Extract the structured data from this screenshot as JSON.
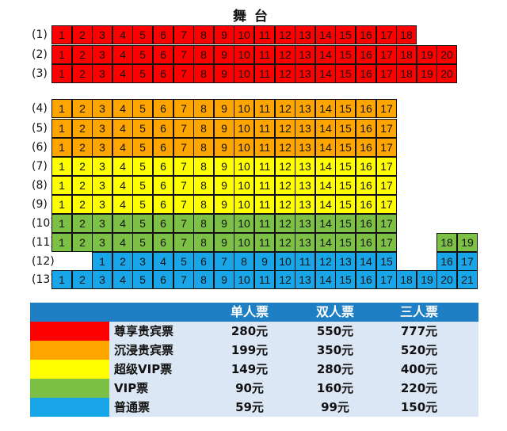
{
  "stage": {
    "title": "舞 台"
  },
  "colors": {
    "red": "#ff0000",
    "orange": "#ffa500",
    "yellow": "#ffff00",
    "green": "#7cc046",
    "blue": "#19a6e8",
    "header": "#1f7fc4",
    "legend_bg": "#dbe7f4"
  },
  "seating": {
    "rows": [
      {
        "label": "(1)",
        "tier": "red",
        "start_col": 1,
        "seats": [
          "1",
          "2",
          "3",
          "4",
          "5",
          "6",
          "7",
          "8",
          "9",
          "10",
          "11",
          "12",
          "13",
          "14",
          "15",
          "16",
          "17",
          "18"
        ]
      },
      {
        "label": "(2)",
        "tier": "red",
        "start_col": 1,
        "seats": [
          "1",
          "2",
          "3",
          "4",
          "5",
          "6",
          "7",
          "8",
          "9",
          "10",
          "11",
          "12",
          "13",
          "14",
          "15",
          "16",
          "17",
          "18",
          "19",
          "20"
        ]
      },
      {
        "label": "(3)",
        "tier": "red",
        "start_col": 1,
        "seats": [
          "1",
          "2",
          "3",
          "4",
          "5",
          "6",
          "7",
          "8",
          "9",
          "10",
          "11",
          "12",
          "13",
          "14",
          "15",
          "16",
          "17",
          "18",
          "19",
          "20"
        ]
      },
      {
        "label": "(4)",
        "tier": "orange",
        "start_col": 1,
        "seats": [
          "1",
          "2",
          "3",
          "4",
          "5",
          "6",
          "7",
          "8",
          "9",
          "10",
          "11",
          "12",
          "13",
          "14",
          "15",
          "16",
          "17"
        ]
      },
      {
        "label": "(5)",
        "tier": "orange",
        "start_col": 1,
        "seats": [
          "1",
          "2",
          "3",
          "4",
          "5",
          "6",
          "7",
          "8",
          "9",
          "10",
          "11",
          "12",
          "13",
          "14",
          "15",
          "16",
          "17"
        ]
      },
      {
        "label": "(6)",
        "tier": "orange",
        "start_col": 1,
        "seats": [
          "1",
          "2",
          "3",
          "4",
          "5",
          "6",
          "7",
          "8",
          "9",
          "10",
          "11",
          "12",
          "13",
          "14",
          "15",
          "16",
          "17"
        ]
      },
      {
        "label": "(7)",
        "tier": "yellow",
        "start_col": 1,
        "seats": [
          "1",
          "2",
          "3",
          "4",
          "5",
          "6",
          "7",
          "8",
          "9",
          "10",
          "11",
          "12",
          "13",
          "14",
          "15",
          "16",
          "17"
        ]
      },
      {
        "label": "(8)",
        "tier": "yellow",
        "start_col": 1,
        "seats": [
          "1",
          "2",
          "3",
          "4",
          "5",
          "6",
          "7",
          "8",
          "9",
          "10",
          "11",
          "12",
          "13",
          "14",
          "15",
          "16",
          "17"
        ]
      },
      {
        "label": "(9)",
        "tier": "yellow",
        "start_col": 1,
        "seats": [
          "1",
          "2",
          "3",
          "4",
          "5",
          "6",
          "7",
          "8",
          "9",
          "10",
          "11",
          "12",
          "13",
          "14",
          "15",
          "16",
          "17"
        ]
      },
      {
        "label": "(10)",
        "tier": "green",
        "start_col": 1,
        "seats": [
          "1",
          "2",
          "3",
          "4",
          "5",
          "6",
          "7",
          "8",
          "9",
          "10",
          "11",
          "12",
          "13",
          "14",
          "15",
          "16",
          "17"
        ]
      },
      {
        "label": "(11)",
        "tier": "green",
        "start_col": 1,
        "seats": [
          "1",
          "2",
          "3",
          "4",
          "5",
          "6",
          "7",
          "8",
          "9",
          "10",
          "11",
          "12",
          "13",
          "14",
          "15",
          "16",
          "17"
        ],
        "extra": {
          "start_col": 20,
          "seats": [
            "18",
            "19"
          ]
        }
      },
      {
        "label": "(12)",
        "tier": "blue",
        "start_col": 3,
        "seats": [
          "1",
          "2",
          "3",
          "4",
          "5",
          "6",
          "7",
          "8",
          "9",
          "10",
          "11",
          "12",
          "13",
          "14",
          "15"
        ],
        "extra": {
          "start_col": 20,
          "seats": [
            "16",
            "17"
          ]
        }
      },
      {
        "label": "(13)",
        "tier": "blue",
        "start_col": 1,
        "seats": [
          "1",
          "2",
          "3",
          "4",
          "5",
          "6",
          "7",
          "8",
          "9",
          "10",
          "11",
          "12",
          "13",
          "14",
          "15",
          "16",
          "17",
          "18",
          "19",
          "20",
          "21"
        ]
      }
    ]
  },
  "pricing": {
    "headers": [
      "单人票",
      "双人票",
      "三人票"
    ],
    "tiers": [
      {
        "name": "尊享贵宾票",
        "color": "red",
        "prices": [
          "280元",
          "550元",
          "777元"
        ]
      },
      {
        "name": "沉浸贵宾票",
        "color": "orange",
        "prices": [
          "199元",
          "350元",
          "520元"
        ]
      },
      {
        "name": "超级VIP票",
        "color": "yellow",
        "prices": [
          "149元",
          "280元",
          "400元"
        ]
      },
      {
        "name": "VIP票",
        "color": "green",
        "prices": [
          "90元",
          "160元",
          "220元"
        ]
      },
      {
        "name": "普通票",
        "color": "blue",
        "prices": [
          "59元",
          "99元",
          "150元"
        ]
      }
    ]
  }
}
